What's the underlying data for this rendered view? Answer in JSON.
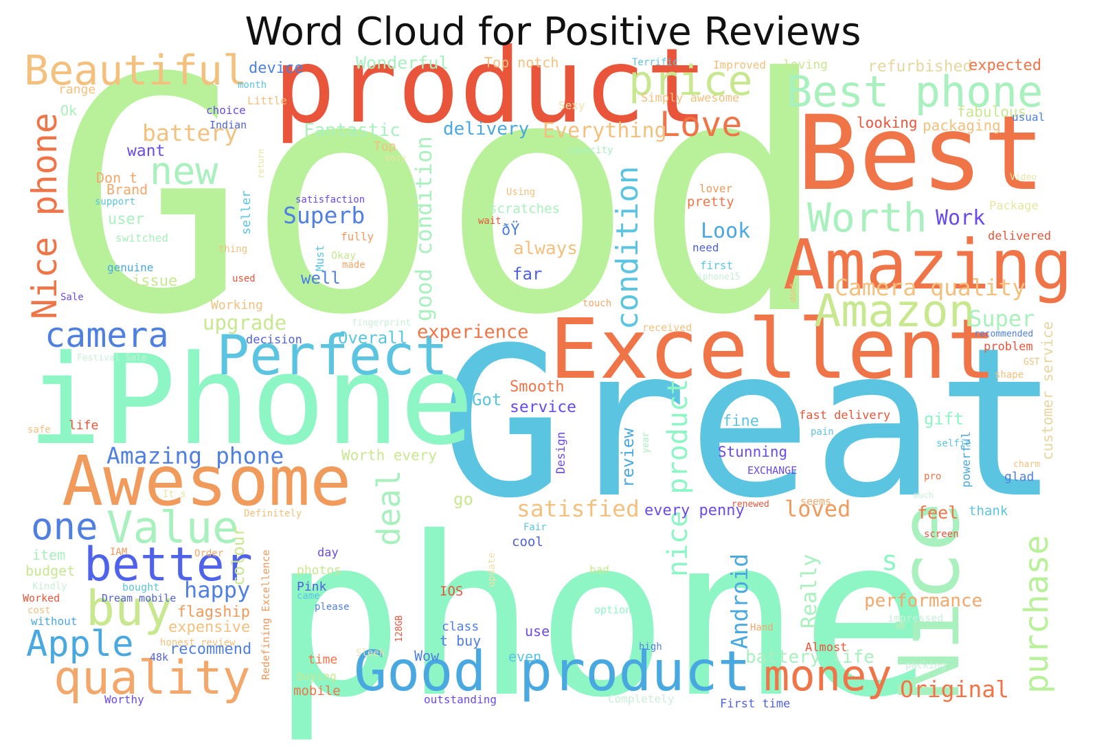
{
  "title": "Word Cloud for Positive Reviews",
  "words": [
    {
      "text": "Good",
      "color": "#b9f09a"
    },
    {
      "text": "phone",
      "color": "#8ef5c5"
    },
    {
      "text": "Great",
      "color": "#5bc4e0"
    },
    {
      "text": "iPhone",
      "color": "#8ef5c5"
    },
    {
      "text": "product",
      "color": "#e8553a"
    },
    {
      "text": "Best",
      "color": "#ef7548"
    },
    {
      "text": "Excellent",
      "color": "#ef7548"
    },
    {
      "text": "Awesome",
      "color": "#f09a5c"
    },
    {
      "text": "Amazing",
      "color": "#ef7548"
    },
    {
      "text": "Nice",
      "color": "#a8f0bd"
    },
    {
      "text": "Good product",
      "color": "#4aa8e0"
    },
    {
      "text": "Perfect",
      "color": "#5bc4e0"
    },
    {
      "text": "Best phone",
      "color": "#a8f0bd"
    },
    {
      "text": "Beautiful",
      "color": "#f3c07e"
    },
    {
      "text": "quality",
      "color": "#f3a76a"
    },
    {
      "text": "buy",
      "color": "#c8e890"
    },
    {
      "text": "better",
      "color": "#4e62ea"
    },
    {
      "text": "Value",
      "color": "#a8f0bd"
    },
    {
      "text": "Amazon",
      "color": "#c8e890"
    },
    {
      "text": "money",
      "color": "#ef7548"
    },
    {
      "text": "Apple",
      "color": "#4aa8e0"
    },
    {
      "text": "camera",
      "color": "#4f7fe0"
    },
    {
      "text": "one",
      "color": "#4f7fe0"
    },
    {
      "text": "price",
      "color": "#c8e890"
    },
    {
      "text": "new",
      "color": "#a8f0bd"
    },
    {
      "text": "Worth",
      "color": "#a8f0bd"
    },
    {
      "text": "Love",
      "color": "#ef7548"
    },
    {
      "text": "purchase",
      "color": "#b9f09a"
    },
    {
      "text": "Nice phone",
      "color": "#ef7548"
    },
    {
      "text": "condition",
      "color": "#5bc4e0"
    },
    {
      "text": "deal",
      "color": "#a8f0bd"
    },
    {
      "text": "nice product",
      "color": "#8ef5c5"
    },
    {
      "text": "Amazing phone",
      "color": "#4f7fe0"
    },
    {
      "text": "satisfied",
      "color": "#f3c07e"
    },
    {
      "text": "Camera quality",
      "color": "#f3c07e"
    },
    {
      "text": "Original",
      "color": "#ef7548"
    },
    {
      "text": "Android",
      "color": "#4aa8e0"
    },
    {
      "text": "good condition",
      "color": "#a8f0bd"
    },
    {
      "text": "battery",
      "color": "#f3c07e"
    },
    {
      "text": "Everything",
      "color": "#f3c07e"
    },
    {
      "text": "experience",
      "color": "#ef7548"
    },
    {
      "text": "loved",
      "color": "#f09a5c"
    },
    {
      "text": "happy",
      "color": "#4f7fe0"
    },
    {
      "text": "Super",
      "color": "#a8f0bd"
    },
    {
      "text": "Superb",
      "color": "#4f7fe0"
    },
    {
      "text": "Look",
      "color": "#4aa8e0"
    },
    {
      "text": "Work",
      "color": "#6a4ae8"
    },
    {
      "text": "Overall",
      "color": "#5bc4e0"
    },
    {
      "text": "upgrade",
      "color": "#c8e890"
    },
    {
      "text": "Fantastic",
      "color": "#a8f0bd"
    },
    {
      "text": "delivery",
      "color": "#4aa8e0"
    },
    {
      "text": "always",
      "color": "#f3c07e"
    },
    {
      "text": "battery life",
      "color": "#a8f0bd"
    },
    {
      "text": "performance",
      "color": "#f3a76a"
    },
    {
      "text": "Really",
      "color": "#a8f0bd"
    },
    {
      "text": "customer service",
      "color": "#e6d6a0"
    },
    {
      "text": "Wonderful",
      "color": "#a8f0bd"
    },
    {
      "text": "refurbished",
      "color": "#e6d6a0"
    },
    {
      "text": "expected",
      "color": "#ef7548"
    },
    {
      "text": "Top notch",
      "color": "#f3c07e"
    },
    {
      "text": "packaging",
      "color": "#f3c07e"
    },
    {
      "text": "looking",
      "color": "#e8553a"
    },
    {
      "text": "fabulous",
      "color": "#c8e890"
    },
    {
      "text": "service",
      "color": "#6a4ae8"
    },
    {
      "text": "Got",
      "color": "#5bc4e0"
    },
    {
      "text": "Smooth",
      "color": "#ef7548"
    },
    {
      "text": "well",
      "color": "#4f7fe0"
    },
    {
      "text": "far",
      "color": "#4f62d8"
    },
    {
      "text": "user",
      "color": "#a8f0bd"
    },
    {
      "text": "issue",
      "color": "#c8e890"
    },
    {
      "text": "want",
      "color": "#6a4ae8"
    },
    {
      "text": "expensive",
      "color": "#f3c07e"
    },
    {
      "text": "flagship",
      "color": "#f09a5c"
    },
    {
      "text": "recommend",
      "color": "#4f7fe0"
    },
    {
      "text": "every penny",
      "color": "#6a4ae8"
    },
    {
      "text": "feel",
      "color": "#ef7548"
    },
    {
      "text": "gift",
      "color": "#8ef5c5"
    },
    {
      "text": "fast delivery",
      "color": "#e8553a"
    },
    {
      "text": "fine",
      "color": "#5bc4e0"
    },
    {
      "text": "Stunning",
      "color": "#6a4ae8"
    },
    {
      "text": "Worth every",
      "color": "#c8e890"
    },
    {
      "text": "review",
      "color": "#4aa8e0"
    },
    {
      "text": "colour",
      "color": "#c8e890"
    },
    {
      "text": "go",
      "color": "#c8e890"
    },
    {
      "text": "s",
      "color": "#8ef5c5"
    },
    {
      "text": "device",
      "color": "#4f7fe0"
    },
    {
      "text": "Improved",
      "color": "#f3c07e"
    },
    {
      "text": "Terrific",
      "color": "#5bc4e0"
    },
    {
      "text": "loving",
      "color": "#c8e890"
    },
    {
      "text": "Simply awesome",
      "color": "#f3c07e"
    },
    {
      "text": "Little",
      "color": "#f3c07e"
    },
    {
      "text": "Sexy",
      "color": "#f3e0a8"
    },
    {
      "text": "choice",
      "color": "#6a4ae8"
    },
    {
      "text": "Indian",
      "color": "#4f62d8"
    },
    {
      "text": "range",
      "color": "#f3c07e"
    },
    {
      "text": "month",
      "color": "#5bc4e0"
    },
    {
      "text": "Ok",
      "color": "#a8f0bd"
    },
    {
      "text": "usual",
      "color": "#4f7fe0"
    },
    {
      "text": "Top",
      "color": "#f3c07e"
    },
    {
      "text": "capacity",
      "color": "#a8f0bd"
    },
    {
      "text": "easy",
      "color": "#e6e6a0"
    },
    {
      "text": "Don t",
      "color": "#f3a76a"
    },
    {
      "text": "Brand",
      "color": "#f3a76a"
    },
    {
      "text": "support",
      "color": "#5bc4e0"
    },
    {
      "text": "switched",
      "color": "#a8f0bd"
    },
    {
      "text": "genuine",
      "color": "#4aa8e0"
    },
    {
      "text": "Sale",
      "color": "#6a4ae8"
    },
    {
      "text": "Working",
      "color": "#f3c07e"
    },
    {
      "text": "return",
      "color": "#e6e6a0"
    },
    {
      "text": "seller",
      "color": "#5bc4e0"
    },
    {
      "text": "satisfaction",
      "color": "#6a4ae8"
    },
    {
      "text": "Using",
      "color": "#f3c07e"
    },
    {
      "text": "scratches",
      "color": "#a8f0bd"
    },
    {
      "text": "ðŸ",
      "color": "#4f7fe0"
    },
    {
      "text": "wait",
      "color": "#e8553a"
    },
    {
      "text": "fully",
      "color": "#f09a5c"
    },
    {
      "text": "thing",
      "color": "#f3c07e"
    },
    {
      "text": "Okay",
      "color": "#c8e890"
    },
    {
      "text": "made",
      "color": "#f3a76a"
    },
    {
      "text": "Must",
      "color": "#5bc4e0"
    },
    {
      "text": "used",
      "color": "#e8553a"
    },
    {
      "text": "lover",
      "color": "#f09a5c"
    },
    {
      "text": "pretty",
      "color": "#ef7548"
    },
    {
      "text": "need",
      "color": "#4f62d8"
    },
    {
      "text": "first",
      "color": "#5bc4e0"
    },
    {
      "text": "iphone15",
      "color": "#c8f0d8"
    },
    {
      "text": "Video",
      "color": "#e6e6a0"
    },
    {
      "text": "Package",
      "color": "#e6e6a0"
    },
    {
      "text": "delivered",
      "color": "#e8553a"
    },
    {
      "text": "dont",
      "color": "#f3c07e"
    },
    {
      "text": "touch",
      "color": "#f3a76a"
    },
    {
      "text": "received",
      "color": "#f3c07e"
    },
    {
      "text": "fingerprint",
      "color": "#c8f0d8"
    },
    {
      "text": "recommended",
      "color": "#4f7fe0"
    },
    {
      "text": "problem",
      "color": "#e8553a"
    },
    {
      "text": "GST",
      "color": "#f3c07e"
    },
    {
      "text": "shape",
      "color": "#f3c07e"
    },
    {
      "text": "decision",
      "color": "#4f62d8"
    },
    {
      "text": "Festival Sale",
      "color": "#c8f0d8"
    },
    {
      "text": "safe",
      "color": "#f3c07e"
    },
    {
      "text": "life",
      "color": "#e8553a"
    },
    {
      "text": "Design",
      "color": "#6a4ae8"
    },
    {
      "text": "year",
      "color": "#a8f0bd"
    },
    {
      "text": "pain",
      "color": "#5bc4e0"
    },
    {
      "text": "selfie",
      "color": "#5bc4e0"
    },
    {
      "text": "powerful",
      "color": "#4aa8e0"
    },
    {
      "text": "charm",
      "color": "#f3c07e"
    },
    {
      "text": "pro",
      "color": "#ef7548"
    },
    {
      "text": "glad",
      "color": "#4f7fe0"
    },
    {
      "text": "much",
      "color": "#c8f0d8"
    },
    {
      "text": "EXCHANGE",
      "color": "#6a4ae8"
    },
    {
      "text": "renewed",
      "color": "#e8553a"
    },
    {
      "text": "seems",
      "color": "#f3a76a"
    },
    {
      "text": "thank",
      "color": "#5bc4e0"
    },
    {
      "text": "screen",
      "color": "#e8553a"
    },
    {
      "text": "It s",
      "color": "#e6e6a0"
    },
    {
      "text": "Definitely",
      "color": "#f3c07e"
    },
    {
      "text": "item",
      "color": "#a8f0bd"
    },
    {
      "text": "budget",
      "color": "#c8e890"
    },
    {
      "text": "Kindly",
      "color": "#c8f0d8"
    },
    {
      "text": "Worked",
      "color": "#e8553a"
    },
    {
      "text": "cost",
      "color": "#f3c07e"
    },
    {
      "text": "without",
      "color": "#4aa8e0"
    },
    {
      "text": "IAM",
      "color": "#f09a5c"
    },
    {
      "text": "Order",
      "color": "#f3a76a"
    },
    {
      "text": "Dream mobile",
      "color": "#4f62d8"
    },
    {
      "text": "bought",
      "color": "#5bc4e0"
    },
    {
      "text": "honest review",
      "color": "#f3c07e"
    },
    {
      "text": "48k",
      "color": "#4f62d8"
    },
    {
      "text": "Redefining Excellence",
      "color": "#f09a5c"
    },
    {
      "text": "day",
      "color": "#6a4ae8"
    },
    {
      "text": "photos",
      "color": "#c8e890"
    },
    {
      "text": "Pink",
      "color": "#4f62d8"
    },
    {
      "text": "came",
      "color": "#5bc4e0"
    },
    {
      "text": "please",
      "color": "#4f7fe0"
    },
    {
      "text": "128GB",
      "color": "#e8553a"
    },
    {
      "text": "Sleek",
      "color": "#f3e0a8"
    },
    {
      "text": "time",
      "color": "#ef7548"
    },
    {
      "text": "buying",
      "color": "#c8e890"
    },
    {
      "text": "Worthy",
      "color": "#6a4ae8"
    },
    {
      "text": "mobile",
      "color": "#ef7548"
    },
    {
      "text": "outstanding",
      "color": "#6a4ae8"
    },
    {
      "text": "Wow",
      "color": "#4f7fe0"
    },
    {
      "text": "t buy",
      "color": "#4f7fe0"
    },
    {
      "text": "class",
      "color": "#4f7fe0"
    },
    {
      "text": "IOS",
      "color": "#e8553a"
    },
    {
      "text": "even",
      "color": "#5bc4e0"
    },
    {
      "text": "use",
      "color": "#6a4ae8"
    },
    {
      "text": "update",
      "color": "#f3e0a8"
    },
    {
      "text": "Fair",
      "color": "#5bc4e0"
    },
    {
      "text": "cool",
      "color": "#4f62d8"
    },
    {
      "text": "bad",
      "color": "#c8e890"
    },
    {
      "text": "option",
      "color": "#8ef5c5"
    },
    {
      "text": "high",
      "color": "#4f7fe0"
    },
    {
      "text": "Hand",
      "color": "#f3a76a"
    },
    {
      "text": "Almost",
      "color": "#e8553a"
    },
    {
      "text": "impressed",
      "color": "#c8f0d8"
    },
    {
      "text": "packing",
      "color": "#c8f0d8"
    },
    {
      "text": "Completely",
      "color": "#c8f0d8"
    },
    {
      "text": "First time",
      "color": "#4f62d8"
    }
  ]
}
